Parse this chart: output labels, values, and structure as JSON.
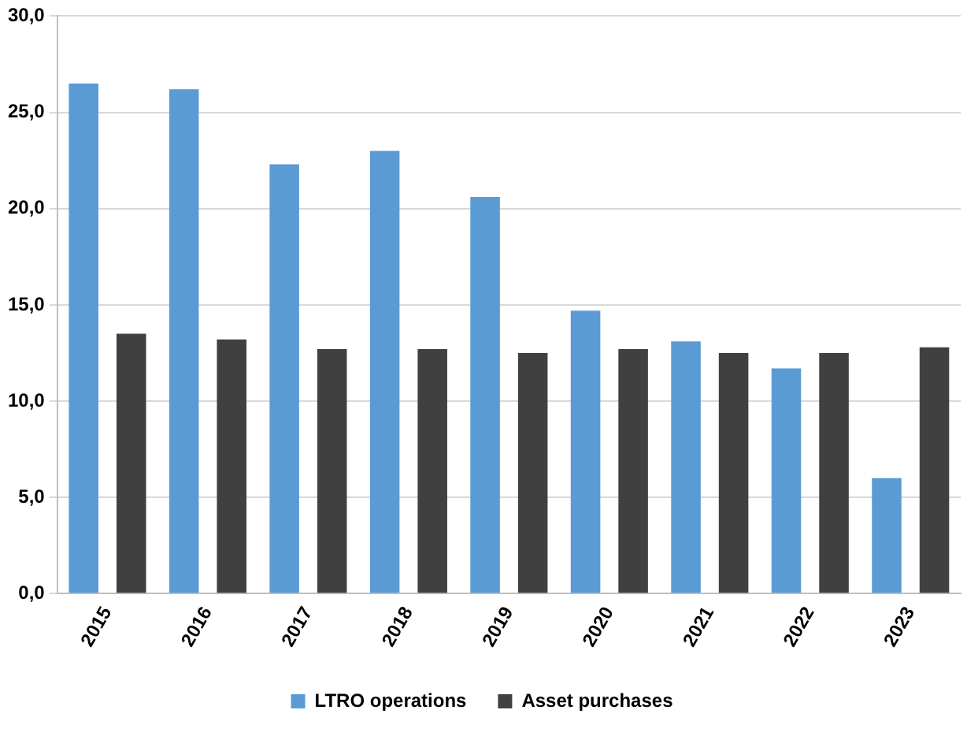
{
  "chart_data": {
    "type": "bar",
    "categories": [
      "2015",
      "2016",
      "2017",
      "2018",
      "2019",
      "2020",
      "2021",
      "2022",
      "2023"
    ],
    "series": [
      {
        "name": "LTRO operations",
        "color": "#5b9bd5",
        "values": [
          26.5,
          26.2,
          22.3,
          23.0,
          20.6,
          14.7,
          13.1,
          11.7,
          6.0
        ]
      },
      {
        "name": "Asset purchases",
        "color": "#404040",
        "values": [
          13.5,
          13.2,
          12.7,
          12.7,
          12.5,
          12.7,
          12.5,
          12.5,
          12.8
        ]
      }
    ],
    "ylim": [
      0,
      30
    ],
    "yticks": [
      {
        "value": 0,
        "label": "0,0"
      },
      {
        "value": 5,
        "label": "5,0"
      },
      {
        "value": 10,
        "label": "10,0"
      },
      {
        "value": 15,
        "label": "15,0"
      },
      {
        "value": 20,
        "label": "20,0"
      },
      {
        "value": 25,
        "label": "25,0"
      },
      {
        "value": 30,
        "label": "30,0"
      }
    ],
    "grid": "y",
    "legend": "bottom"
  }
}
